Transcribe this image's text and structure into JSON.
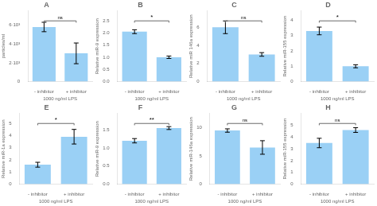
{
  "chart_data": [
    {
      "type": "bar",
      "title": "A",
      "xlabel": "1000 ng/ml LPS",
      "ylabel": "particles/ml",
      "categories": [
        "- inhibitor",
        "+ inhibitor"
      ],
      "values": [
        5800,
        3000
      ],
      "errors": [
        500,
        1100
      ],
      "annotations": [
        "ns"
      ],
      "ylim": [
        0,
        7500
      ],
      "yticks": [
        0,
        {
          "value": 2000,
          "label": "2·10³"
        },
        {
          "value": 4000,
          "label": "4·10³"
        },
        {
          "value": 6000,
          "label": "6·10³"
        }
      ],
      "grid": false
    },
    {
      "type": "bar",
      "title": "B",
      "xlabel": "1000 ng/ml LPS",
      "ylabel": "Relative miR-9 expression",
      "categories": [
        "- inhibitor",
        "+ inhibitor"
      ],
      "values": [
        2.05,
        1.0
      ],
      "errors": [
        0.08,
        0.05
      ],
      "annotations": [
        "*"
      ],
      "ylim": [
        0,
        2.9
      ],
      "yticks": [
        {
          "value": 0,
          "label": "0.0"
        },
        0.5,
        {
          "value": 1,
          "label": "1.0"
        },
        1.5,
        {
          "value": 2,
          "label": "2.0"
        },
        2.5
      ],
      "grid": false
    },
    {
      "type": "bar",
      "title": "C",
      "xlabel": "1000 ng/ml LPS",
      "ylabel": "Relative miR 146a expression",
      "categories": [
        "- inhibitor",
        "+ inhibitor"
      ],
      "values": [
        6.0,
        3.0
      ],
      "errors": [
        0.7,
        0.2
      ],
      "annotations": [
        "ns"
      ],
      "ylim": [
        0,
        7.8
      ],
      "yticks": [
        0,
        2,
        4,
        6
      ],
      "grid": false
    },
    {
      "type": "bar",
      "title": "D",
      "xlabel": "1000 ng/ml LPS",
      "ylabel": "Relative miR-155 expression",
      "categories": [
        "- inhibitor",
        "+ inhibitor"
      ],
      "values": [
        3.3,
        1.0
      ],
      "errors": [
        0.25,
        0.1
      ],
      "annotations": [
        "*"
      ],
      "ylim": [
        0,
        4.6
      ],
      "yticks": [
        0,
        1,
        2,
        3,
        4
      ],
      "grid": false
    },
    {
      "type": "bar",
      "title": "E",
      "xlabel": "1000 ng/ml LPS",
      "ylabel": "Relative miR-1a expression",
      "categories": [
        "- inhibitor",
        "+ inhibitor"
      ],
      "values": [
        1.6,
        3.9
      ],
      "errors": [
        0.2,
        0.6
      ],
      "annotations": [
        "*"
      ],
      "ylim": [
        0,
        5.8
      ],
      "yticks": [
        0,
        1,
        2,
        3,
        4,
        5
      ],
      "grid": false
    },
    {
      "type": "bar",
      "title": "F",
      "xlabel": "1000 ng/ml LPS",
      "ylabel": "Relative miR-9 expression",
      "categories": [
        "- inhibitor",
        "+ inhibitor"
      ],
      "values": [
        1.2,
        1.55
      ],
      "errors": [
        0.06,
        0.04
      ],
      "annotations": [
        "**"
      ],
      "ylim": [
        0,
        1.95
      ],
      "yticks": [
        {
          "value": 0,
          "label": "0.0"
        },
        0.5,
        {
          "value": 1,
          "label": "1.0"
        },
        1.5
      ],
      "grid": false
    },
    {
      "type": "bar",
      "title": "G",
      "xlabel": "1000 ng/ml LPS",
      "ylabel": "Relative miR-146a expression",
      "categories": [
        "- inhibitor",
        "+ inhibitor"
      ],
      "values": [
        9.5,
        6.5
      ],
      "errors": [
        0.3,
        1.2
      ],
      "annotations": [
        "ns"
      ],
      "ylim": [
        0,
        12.5
      ],
      "yticks": [
        0,
        5,
        10
      ],
      "grid": false
    },
    {
      "type": "bar",
      "title": "H",
      "xlabel": "1000 ng/ml LPS",
      "ylabel": "Relative miR-155 expression",
      "categories": [
        "- inhibitor",
        "+ inhibitor"
      ],
      "values": [
        3.5,
        4.6
      ],
      "errors": [
        0.4,
        0.2
      ],
      "annotations": [
        "ns"
      ],
      "ylim": [
        0,
        6.0
      ],
      "yticks": [
        0,
        1,
        2,
        3,
        4,
        5
      ],
      "grid": false
    }
  ]
}
